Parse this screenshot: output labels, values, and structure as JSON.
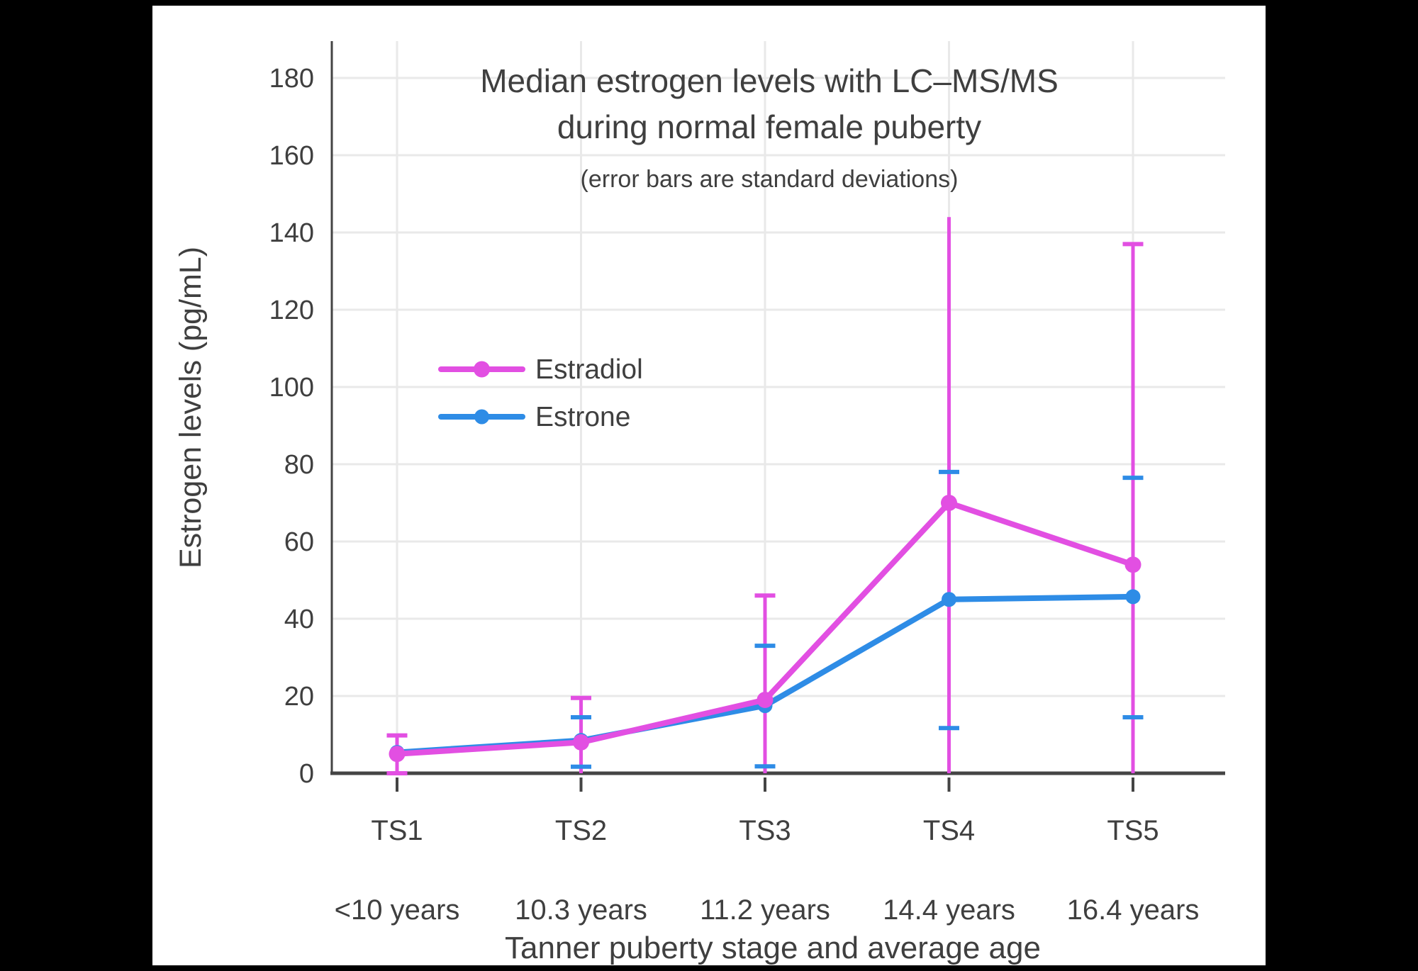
{
  "page": {
    "background": "#000000",
    "canvas_background": "#FFFFFF"
  },
  "title": {
    "line1": "Median estrogen levels with LC–MS/MS",
    "line2": "during normal female puberty",
    "subtitle": "(error bars are standard deviations)"
  },
  "y_axis": {
    "label": "Estrogen levels (pg/mL)",
    "ticks": [
      0,
      20,
      40,
      60,
      80,
      100,
      120,
      140,
      160,
      180
    ]
  },
  "x_axis": {
    "label": "Tanner puberty stage and average age",
    "stages": [
      "TS1",
      "TS2",
      "TS3",
      "TS4",
      "TS5"
    ],
    "ages": [
      "<10 years",
      "10.3 years",
      "11.2 years",
      "14.4 years",
      "16.4 years"
    ]
  },
  "legend": {
    "items": [
      {
        "label": "Estradiol",
        "color": "#E24FE2"
      },
      {
        "label": "Estrone",
        "color": "#2E8CE6"
      }
    ]
  },
  "colors": {
    "text": "#3F3F3F",
    "grid": "#E9E9E9",
    "axis": "#444444",
    "estradiol": "#E24FE2",
    "estrone": "#2E8CE6"
  },
  "chart_data": {
    "type": "line",
    "title": "Median estrogen levels with LC–MS/MS during normal female puberty",
    "subtitle": "(error bars are standard deviations)",
    "xlabel": "Tanner puberty stage and average age",
    "ylabel": "Estrogen levels (pg/mL)",
    "categories": [
      "TS1 <10 years",
      "TS2 10.3 years",
      "TS3 11.2 years",
      "TS4 14.4 years",
      "TS5 16.4 years"
    ],
    "ylim": [
      0,
      190
    ],
    "yticks": [
      0,
      20,
      40,
      60,
      80,
      100,
      120,
      140,
      160,
      180
    ],
    "grid": true,
    "legend_position": "inside-upper-left",
    "error_bars": "standard deviations (clipped at 0)",
    "series": [
      {
        "name": "Estradiol",
        "color": "#E24FE2",
        "values": [
          5,
          8,
          19,
          70,
          54
        ],
        "sd_upper": [
          9.8,
          19.5,
          46,
          144,
          137
        ],
        "sd_lower": [
          0,
          0,
          0,
          0,
          0
        ],
        "cap_top": [
          true,
          true,
          true,
          false,
          true
        ],
        "cap_bottom": [
          true,
          false,
          false,
          false,
          false
        ]
      },
      {
        "name": "Estrone",
        "color": "#2E8CE6",
        "values": [
          5.4,
          8.5,
          17.5,
          45,
          45.7
        ],
        "sd_upper": [
          null,
          14.5,
          33,
          78,
          76.5
        ],
        "sd_lower": [
          null,
          1.7,
          1.8,
          11.7,
          14.5
        ],
        "cap_top": [
          false,
          true,
          true,
          true,
          true
        ],
        "cap_bottom": [
          false,
          true,
          true,
          true,
          true
        ]
      }
    ]
  }
}
